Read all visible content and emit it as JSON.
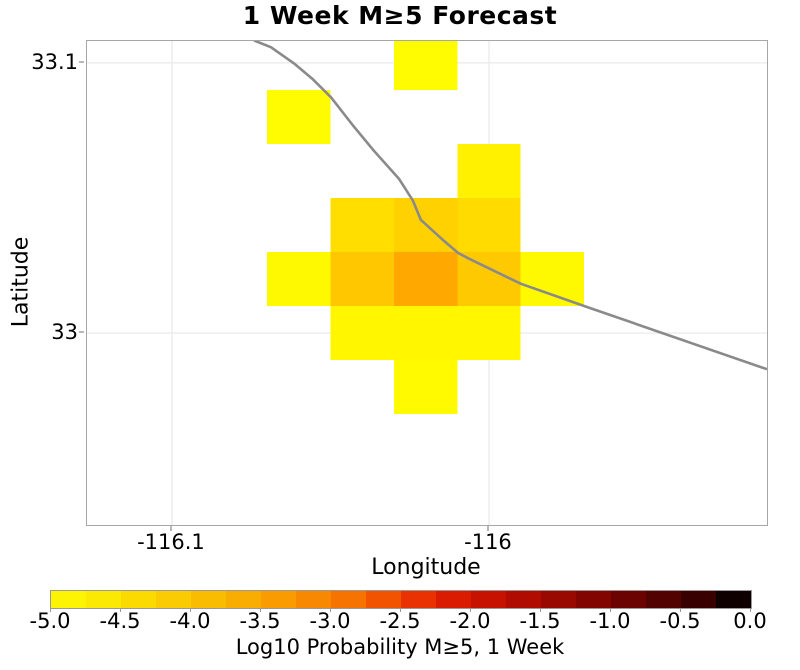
{
  "chart_data": {
    "type": "heatmap",
    "title": "1 Week M≥5 Forecast",
    "xlabel": "Longitude",
    "ylabel": "Latitude",
    "xlim": [
      -116.1268,
      -115.9123
    ],
    "ylim": [
      32.9289,
      33.1081
    ],
    "grid": true,
    "x_ticks": [
      {
        "value": -116.1,
        "label": "-116.1"
      },
      {
        "value": -116.0,
        "label": "-116"
      }
    ],
    "y_ticks": [
      {
        "value": 33.1,
        "label": "33.1"
      },
      {
        "value": 33.0,
        "label": "33"
      }
    ],
    "cell_size_deg": 0.02,
    "cells": [
      {
        "lon": -116.03,
        "lat": 33.09,
        "log10_prob": -4.9,
        "color": "#FFFB00"
      },
      {
        "lon": -116.07,
        "lat": 33.07,
        "log10_prob": -4.9,
        "color": "#FFFB00"
      },
      {
        "lon": -116.01,
        "lat": 33.05,
        "log10_prob": -4.8,
        "color": "#FFF100"
      },
      {
        "lon": -116.05,
        "lat": 33.03,
        "log10_prob": -4.45,
        "color": "#FFDE00"
      },
      {
        "lon": -116.03,
        "lat": 33.03,
        "log10_prob": -4.25,
        "color": "#FFD100"
      },
      {
        "lon": -116.01,
        "lat": 33.03,
        "log10_prob": -4.4,
        "color": "#FFDB00"
      },
      {
        "lon": -116.07,
        "lat": 33.01,
        "log10_prob": -4.85,
        "color": "#FFF900"
      },
      {
        "lon": -116.05,
        "lat": 33.01,
        "log10_prob": -4.1,
        "color": "#FFC700"
      },
      {
        "lon": -116.03,
        "lat": 33.01,
        "log10_prob": -3.6,
        "color": "#FFA800"
      },
      {
        "lon": -116.01,
        "lat": 33.01,
        "log10_prob": -4.1,
        "color": "#FFC900"
      },
      {
        "lon": -115.99,
        "lat": 33.01,
        "log10_prob": -4.85,
        "color": "#FFF900"
      },
      {
        "lon": -116.05,
        "lat": 32.99,
        "log10_prob": -4.8,
        "color": "#FFF600"
      },
      {
        "lon": -116.03,
        "lat": 32.99,
        "log10_prob": -4.8,
        "color": "#FFF600"
      },
      {
        "lon": -116.01,
        "lat": 32.99,
        "log10_prob": -4.8,
        "color": "#FFF600"
      },
      {
        "lon": -116.03,
        "lat": 32.97,
        "log10_prob": -4.85,
        "color": "#FFFA00"
      }
    ],
    "fault_line": {
      "name": "fault-trace",
      "color": "#8a8a8a",
      "points": [
        [
          -116.0741,
          33.1083
        ],
        [
          -116.0688,
          33.1058
        ],
        [
          -116.0615,
          33.0998
        ],
        [
          -116.0555,
          33.0939
        ],
        [
          -116.0498,
          33.0872
        ],
        [
          -116.0429,
          33.0768
        ],
        [
          -116.0366,
          33.0679
        ],
        [
          -116.0284,
          33.0571
        ],
        [
          -116.024,
          33.049
        ],
        [
          -116.0215,
          33.0419
        ],
        [
          -116.0142,
          33.0341
        ],
        [
          -116.0098,
          33.0297
        ],
        [
          -116.0063,
          33.0275
        ],
        [
          -115.9899,
          33.0182
        ],
        [
          -115.97,
          33.01
        ],
        [
          -115.9123,
          32.9866
        ]
      ]
    },
    "colorbar": {
      "label": "Log10 Probability M≥5, 1 Week",
      "min": -5.0,
      "max": 0.0,
      "tick_labels": [
        "-5.0",
        "-4.5",
        "-4.0",
        "-3.5",
        "-3.0",
        "-2.5",
        "-2.0",
        "-1.5",
        "-1.0",
        "-0.5",
        "0.0"
      ],
      "segment_colors": [
        "#FCF403",
        "#FBE903",
        "#FBDA02",
        "#FACB02",
        "#FABC01",
        "#F9AC01",
        "#F99B01",
        "#F88801",
        "#F67201",
        "#F25301",
        "#E93101",
        "#DA1A01",
        "#C71101",
        "#B00C01",
        "#990801",
        "#820501",
        "#6A0301",
        "#520201",
        "#380100",
        "#0E0000"
      ]
    },
    "colors": {
      "plot_border": "#a6a6a6",
      "gridline": "#ededed",
      "background": "#ffffff"
    }
  }
}
